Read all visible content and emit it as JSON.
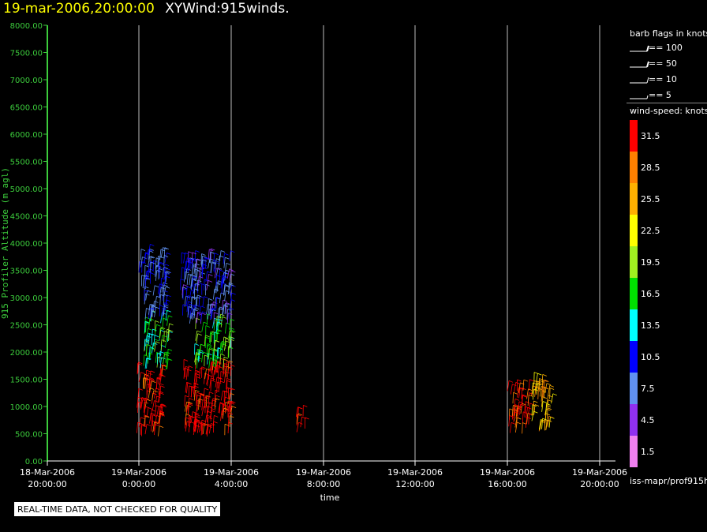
{
  "header": {
    "datetime": "19-mar-2006,20:00:00",
    "title": "XYWind:915winds."
  },
  "colors": {
    "axis_green": "#3ccc3c",
    "grid": "#bbbbbb",
    "title_yellow": "#ffff00"
  },
  "chart_data": {
    "type": "wind-barb time-height",
    "ylabel": "915 Profiler Altitude (m agl)",
    "xlabel": "time",
    "ylim": [
      0,
      8000
    ],
    "xlim_hours": [
      -4,
      20
    ],
    "y_ticks": [
      "0.00",
      "500.00",
      "1000.00",
      "1500.00",
      "2000.00",
      "2500.00",
      "3000.00",
      "3500.00",
      "4000.00",
      "4500.00",
      "5000.00",
      "5500.00",
      "6000.00",
      "6500.00",
      "7000.00",
      "7500.00",
      "8000.00"
    ],
    "x_ticks": [
      {
        "date": "18-Mar-2006",
        "time": "20:00:00"
      },
      {
        "date": "19-Mar-2006",
        "time": "0:00:00"
      },
      {
        "date": "19-Mar-2006",
        "time": "4:00:00"
      },
      {
        "date": "19-Mar-2006",
        "time": "8:00:00"
      },
      {
        "date": "19-Mar-2006",
        "time": "12:00:00"
      },
      {
        "date": "19-Mar-2006",
        "time": "16:00:00"
      },
      {
        "date": "19-Mar-2006",
        "time": "20:00:00"
      }
    ],
    "barb_clusters": [
      {
        "t_start": -0.1,
        "t_end": 1.0,
        "alt_min": 450,
        "alt_max": 1650,
        "speed_knots": 32
      },
      {
        "t_start": 0.2,
        "t_end": 1.3,
        "alt_min": 1650,
        "alt_max": 2600,
        "speed_knots": 16
      },
      {
        "t_start": 0.0,
        "t_end": 1.2,
        "alt_min": 2600,
        "alt_max": 3800,
        "speed_knots": 9
      },
      {
        "t_start": 1.9,
        "t_end": 4.0,
        "alt_min": 450,
        "alt_max": 1700,
        "speed_knots": 32
      },
      {
        "t_start": 2.4,
        "t_end": 4.0,
        "alt_min": 1700,
        "alt_max": 2500,
        "speed_knots": 17
      },
      {
        "t_start": 1.8,
        "t_end": 4.0,
        "alt_min": 2500,
        "alt_max": 3700,
        "speed_knots": 8
      },
      {
        "t_start": 6.8,
        "t_end": 7.2,
        "alt_min": 500,
        "alt_max": 850,
        "speed_knots": 32
      },
      {
        "t_start": 16.0,
        "t_end": 17.0,
        "alt_min": 500,
        "alt_max": 1300,
        "speed_knots": 31
      },
      {
        "t_start": 17.0,
        "t_end": 17.9,
        "alt_min": 500,
        "alt_max": 1450,
        "speed_knots": 25
      }
    ]
  },
  "legend": {
    "barb_title": "barb flags in knots",
    "barbs": [
      "== 100",
      "== 50",
      "== 10",
      "== 5"
    ],
    "speed_title": "wind-speed: knots",
    "scale": [
      {
        "label": "31.5",
        "color": "#ff0000"
      },
      {
        "label": "28.5",
        "color": "#ff8000"
      },
      {
        "label": "25.5",
        "color": "#ffb000"
      },
      {
        "label": "22.5",
        "color": "#ffff00"
      },
      {
        "label": "19.5",
        "color": "#a0f020"
      },
      {
        "label": "16.5",
        "color": "#00e000"
      },
      {
        "label": "13.5",
        "color": "#00ffff"
      },
      {
        "label": "10.5",
        "color": "#0000ff"
      },
      {
        "label": "7.5",
        "color": "#6090f0"
      },
      {
        "label": "4.5",
        "color": "#9030f0"
      },
      {
        "label": "1.5",
        "color": "#f080f0"
      }
    ]
  },
  "footer": {
    "qc_notice": "REAL-TIME DATA, NOT CHECKED FOR QUALITY",
    "source": "iss-mapr/prof915h"
  }
}
